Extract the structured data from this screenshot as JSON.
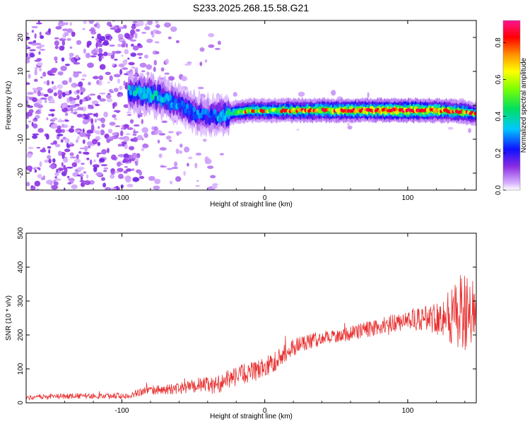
{
  "figure_title": "S233.2025.268.15.58.G21",
  "colors": {
    "snr_line": "#e83232",
    "frame": "#000000",
    "background": "#ffffff"
  },
  "chart_data": [
    {
      "type": "heatmap",
      "title": "S233.2025.268.15.58.G21",
      "xlabel": "Height of straight line (km)",
      "ylabel": "Frequency (Hz)",
      "xlim": [
        -167,
        148
      ],
      "ylim": [
        -25,
        25
      ],
      "x_ticks": [
        -100,
        0,
        100
      ],
      "y_ticks": [
        -20,
        -10,
        0,
        10,
        20
      ],
      "colorbar": {
        "label": "Normalized spectral amplitude",
        "range": [
          0.0,
          0.92
        ],
        "ticks": [
          "0.0",
          "0.2",
          "0.4",
          "0.6",
          "0.8"
        ],
        "tick_values": [
          0.0,
          0.2,
          0.4,
          0.6,
          0.8
        ]
      },
      "ridge_track": {
        "description": "dominant frequency ridge",
        "x": [
          -90,
          -80,
          -70,
          -60,
          -50,
          -40,
          -30,
          -20,
          -10,
          0,
          20,
          40,
          60,
          80,
          100,
          120,
          140,
          148
        ],
        "y": [
          4,
          3,
          2,
          0,
          -2,
          -3,
          -3,
          -2,
          -1.5,
          -1.5,
          -1.5,
          -1.5,
          -1.5,
          -1.5,
          -1.5,
          -1.5,
          -2,
          -2.5
        ],
        "amplitude": [
          0.35,
          0.4,
          0.35,
          0.3,
          0.3,
          0.25,
          0.35,
          0.45,
          0.55,
          0.55,
          0.6,
          0.65,
          0.7,
          0.75,
          0.8,
          0.7,
          0.6,
          0.5
        ]
      }
    },
    {
      "type": "line",
      "xlabel": "Height of straight line (km)",
      "ylabel": "SNR (10 * v/v)",
      "xlim": [
        -167,
        148
      ],
      "ylim": [
        0,
        500
      ],
      "x_ticks": [
        -100,
        0,
        100
      ],
      "y_ticks": [
        0,
        100,
        200,
        300,
        400,
        500
      ],
      "series": [
        {
          "name": "SNR",
          "x": [
            -167,
            -150,
            -130,
            -110,
            -95,
            -85,
            -75,
            -65,
            -55,
            -45,
            -35,
            -25,
            -15,
            -5,
            5,
            15,
            25,
            35,
            45,
            55,
            65,
            75,
            85,
            95,
            105,
            115,
            125,
            135,
            140,
            145,
            148
          ],
          "values": [
            15,
            18,
            20,
            20,
            22,
            35,
            38,
            40,
            45,
            55,
            50,
            70,
            85,
            95,
            115,
            150,
            175,
            185,
            195,
            200,
            210,
            220,
            230,
            240,
            245,
            250,
            255,
            260,
            265,
            270,
            270
          ],
          "noise_amplitude": [
            8,
            8,
            8,
            9,
            10,
            12,
            14,
            15,
            18,
            22,
            25,
            28,
            30,
            30,
            30,
            28,
            25,
            22,
            20,
            20,
            22,
            25,
            25,
            28,
            30,
            40,
            60,
            120,
            110,
            90,
            80
          ]
        }
      ]
    }
  ]
}
